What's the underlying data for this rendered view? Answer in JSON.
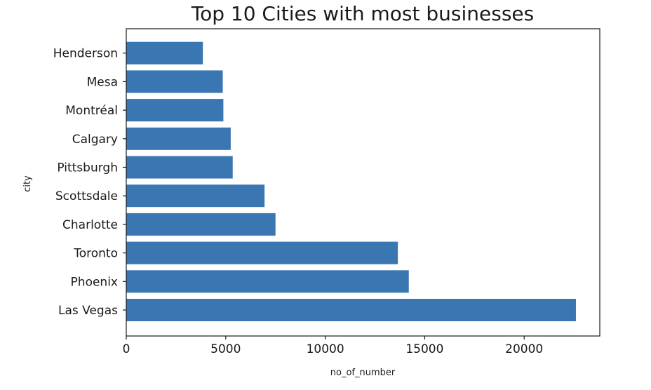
{
  "chart_data": {
    "type": "bar",
    "orientation": "horizontal",
    "title": "Top 10 Cities with most businesses",
    "xlabel": "no_of_number",
    "ylabel": "city",
    "categories": [
      "Las Vegas",
      "Phoenix",
      "Toronto",
      "Charlotte",
      "Scottsdale",
      "Pittsburgh",
      "Calgary",
      "Montréal",
      "Mesa",
      "Henderson"
    ],
    "values": [
      22600,
      14200,
      13650,
      7500,
      6950,
      5350,
      5250,
      4880,
      4850,
      3850
    ],
    "xlim": [
      0,
      23800
    ],
    "xticks": [
      0,
      5000,
      10000,
      15000,
      20000
    ],
    "xtick_labels": [
      "0",
      "5000",
      "10000",
      "15000",
      "20000"
    ],
    "grid": false,
    "colors": {
      "bar": "#3a76b1"
    }
  }
}
